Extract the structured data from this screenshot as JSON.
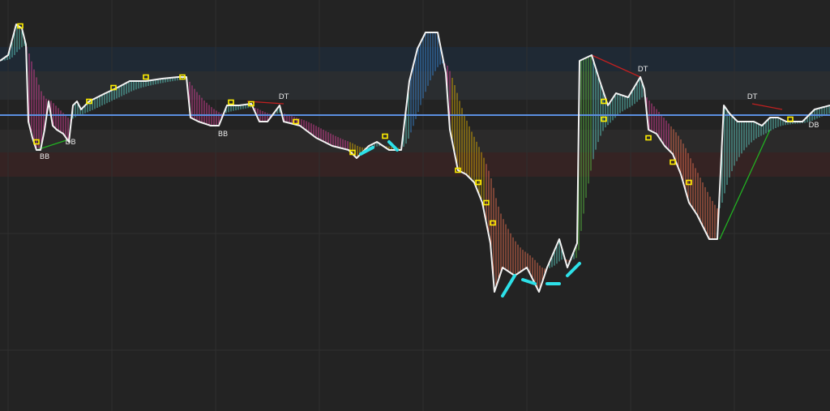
{
  "chart_data": {
    "type": "line",
    "title": "",
    "xlabel": "",
    "ylabel": "",
    "xlim": [
      0,
      204.8
    ],
    "ylim": [
      -1.4,
      100
    ],
    "grid": true,
    "baseline": 71.6,
    "colors": {
      "background": "#232323",
      "price_line": "#f2f2f2",
      "baseline": "#5b8fe0",
      "bullish_fill": "#5fd3c8",
      "bearish_fill": "#e0409a",
      "deep_bearish_fill": "#f07050",
      "marker": "#ffee00",
      "cyan_dash": "#2de0e8",
      "upper_band": "#1e2a38",
      "lower_band": "#3a2424"
    },
    "series": [
      {
        "points": [
          [
            0,
            85
          ],
          [
            2,
            86.4
          ],
          [
            4,
            94
          ],
          [
            5.4,
            93
          ],
          [
            6.4,
            89
          ],
          [
            7,
            70
          ],
          [
            8,
            66
          ],
          [
            9,
            63
          ],
          [
            10,
            63
          ],
          [
            11,
            68
          ],
          [
            12,
            75
          ],
          [
            13,
            69
          ],
          [
            14,
            68
          ],
          [
            15.6,
            67
          ],
          [
            17,
            65
          ],
          [
            18,
            74
          ],
          [
            19,
            75
          ],
          [
            20,
            73
          ],
          [
            22,
            75
          ],
          [
            24,
            76
          ],
          [
            26,
            77
          ],
          [
            29,
            78.4
          ],
          [
            32,
            80
          ],
          [
            36,
            80
          ],
          [
            40,
            80.6
          ],
          [
            44,
            81
          ],
          [
            46,
            81
          ],
          [
            47,
            71
          ],
          [
            49,
            70
          ],
          [
            52,
            69
          ],
          [
            54,
            69
          ],
          [
            56,
            74
          ],
          [
            59,
            74
          ],
          [
            62,
            74.4
          ],
          [
            64,
            70
          ],
          [
            66,
            70
          ],
          [
            69,
            74
          ],
          [
            70,
            70
          ],
          [
            74,
            69
          ],
          [
            78,
            66
          ],
          [
            82,
            64
          ],
          [
            86,
            63
          ],
          [
            88,
            61
          ],
          [
            91,
            64
          ],
          [
            93,
            65
          ],
          [
            96,
            63
          ],
          [
            99,
            63
          ],
          [
            101,
            80
          ],
          [
            103,
            88
          ],
          [
            105,
            92
          ],
          [
            108,
            92
          ],
          [
            110,
            82
          ],
          [
            111,
            68
          ],
          [
            113,
            58
          ],
          [
            115,
            57
          ],
          [
            117,
            55
          ],
          [
            119,
            50
          ],
          [
            121,
            40
          ],
          [
            122,
            28
          ],
          [
            124,
            34
          ],
          [
            127,
            32
          ],
          [
            130,
            34
          ],
          [
            133,
            28
          ],
          [
            135,
            34
          ],
          [
            138,
            41
          ],
          [
            140,
            34
          ],
          [
            142.4,
            40
          ],
          [
            143,
            85
          ],
          [
            146,
            86.4
          ],
          [
            148,
            80
          ],
          [
            150,
            74
          ],
          [
            152,
            77
          ],
          [
            155,
            76
          ],
          [
            158,
            81
          ],
          [
            159,
            78
          ],
          [
            160,
            68
          ],
          [
            162,
            67
          ],
          [
            164,
            64
          ],
          [
            166,
            62
          ],
          [
            168,
            57
          ],
          [
            170,
            50
          ],
          [
            172,
            47
          ],
          [
            175,
            41
          ],
          [
            177,
            41
          ],
          [
            178.6,
            74
          ],
          [
            180,
            72
          ],
          [
            182,
            70
          ],
          [
            184,
            70
          ],
          [
            186,
            70
          ],
          [
            188,
            69
          ],
          [
            190,
            71
          ],
          [
            192,
            71
          ],
          [
            194,
            70
          ],
          [
            198,
            70
          ],
          [
            201,
            73
          ],
          [
            204.8,
            74
          ]
        ]
      }
    ],
    "annotations": [
      {
        "text": "BB",
        "x": 11,
        "y": 60.8
      },
      {
        "text": "DB",
        "x": 17.4,
        "y": 64.4
      },
      {
        "text": "BB",
        "x": 55,
        "y": 66.4
      },
      {
        "text": "DT",
        "x": 70,
        "y": 75.6
      },
      {
        "text": "DT",
        "x": 158.6,
        "y": 82.4
      },
      {
        "text": "DT",
        "x": 185.6,
        "y": 75.6
      },
      {
        "text": "DB",
        "x": 200.8,
        "y": 68.6
      }
    ],
    "trend_lines": [
      {
        "color": "#22b022",
        "from": [
          9,
          63
        ],
        "to": [
          17,
          65.6
        ]
      },
      {
        "color": "#c02020",
        "from": [
          61,
          75
        ],
        "to": [
          70,
          74.4
        ]
      },
      {
        "color": "#c02020",
        "from": [
          146,
          86.4
        ],
        "to": [
          158,
          81
        ]
      },
      {
        "color": "#c02020",
        "from": [
          185.6,
          74.4
        ],
        "to": [
          193,
          73
        ]
      },
      {
        "color": "#22b022",
        "from": [
          177.6,
          41
        ],
        "to": [
          190,
          68
        ]
      }
    ],
    "markers": [
      [
        5,
        93.6
      ],
      [
        9,
        65
      ],
      [
        22,
        75
      ],
      [
        28,
        78.4
      ],
      [
        36,
        81
      ],
      [
        45,
        81
      ],
      [
        57,
        74.8
      ],
      [
        62,
        74.4
      ],
      [
        73,
        70
      ],
      [
        87,
        62.4
      ],
      [
        95,
        66.4
      ],
      [
        113,
        58
      ],
      [
        118,
        55
      ],
      [
        120,
        50
      ],
      [
        121.6,
        45
      ],
      [
        149,
        75
      ],
      [
        149,
        70.6
      ],
      [
        160,
        66
      ],
      [
        166,
        60
      ],
      [
        170,
        55
      ],
      [
        195,
        70.6
      ]
    ],
    "cyan_dashes": [
      [
        [
          89,
          62
        ],
        [
          92,
          63.6
        ]
      ],
      [
        [
          96,
          65
        ],
        [
          98,
          63
        ]
      ],
      [
        [
          124,
          27
        ],
        [
          127,
          32
        ]
      ],
      [
        [
          129,
          31
        ],
        [
          132,
          30
        ]
      ],
      [
        [
          135,
          30
        ],
        [
          138,
          30
        ]
      ],
      [
        [
          140,
          32
        ],
        [
          143,
          35
        ]
      ]
    ]
  }
}
